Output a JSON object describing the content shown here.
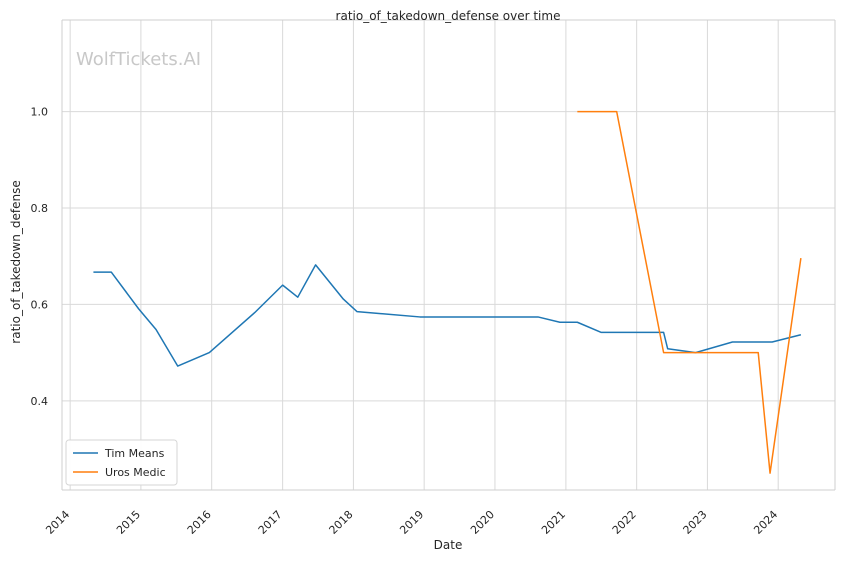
{
  "chart_data": {
    "type": "line",
    "title": "ratio_of_takedown_defense over time",
    "xlabel": "Date",
    "ylabel": "ratio_of_takedown_defense",
    "watermark": "WolfTickets.AI",
    "x_ticks": [
      "2014",
      "2015",
      "2016",
      "2017",
      "2018",
      "2019",
      "2020",
      "2021",
      "2022",
      "2023",
      "2024"
    ],
    "y_ticks": [
      "0.4",
      "0.6",
      "0.8",
      "1.0"
    ],
    "xlim": [
      "2013-11-20",
      "2024-10-20"
    ],
    "ylim": [
      0.215,
      1.19
    ],
    "grid": true,
    "legend_position": "lower-left",
    "colors": {
      "Tim Means": "#1f77b4",
      "Uros Medic": "#ff7f0e"
    },
    "series": [
      {
        "name": "Tim Means",
        "points": [
          {
            "x": "2014-05-01",
            "y": 0.667
          },
          {
            "x": "2014-08-01",
            "y": 0.667
          },
          {
            "x": "2014-12-20",
            "y": 0.591
          },
          {
            "x": "2015-03-20",
            "y": 0.548
          },
          {
            "x": "2015-07-10",
            "y": 0.472
          },
          {
            "x": "2015-12-20",
            "y": 0.5
          },
          {
            "x": "2016-08-10",
            "y": 0.583
          },
          {
            "x": "2017-01-01",
            "y": 0.64
          },
          {
            "x": "2017-03-20",
            "y": 0.615
          },
          {
            "x": "2017-06-20",
            "y": 0.682
          },
          {
            "x": "2017-11-10",
            "y": 0.611
          },
          {
            "x": "2018-01-20",
            "y": 0.585
          },
          {
            "x": "2018-12-10",
            "y": 0.574
          },
          {
            "x": "2020-08-10",
            "y": 0.574
          },
          {
            "x": "2020-12-01",
            "y": 0.563
          },
          {
            "x": "2021-03-01",
            "y": 0.563
          },
          {
            "x": "2021-07-01",
            "y": 0.542
          },
          {
            "x": "2022-05-20",
            "y": 0.542
          },
          {
            "x": "2022-06-10",
            "y": 0.508
          },
          {
            "x": "2022-11-01",
            "y": 0.5
          },
          {
            "x": "2023-05-10",
            "y": 0.522
          },
          {
            "x": "2023-12-01",
            "y": 0.522
          },
          {
            "x": "2024-04-27",
            "y": 0.537
          }
        ]
      },
      {
        "name": "Uros Medic",
        "points": [
          {
            "x": "2021-03-01",
            "y": 1.0
          },
          {
            "x": "2021-09-20",
            "y": 1.0
          },
          {
            "x": "2022-05-20",
            "y": 0.5
          },
          {
            "x": "2023-09-20",
            "y": 0.5
          },
          {
            "x": "2023-11-20",
            "y": 0.25
          },
          {
            "x": "2024-04-27",
            "y": 0.696
          }
        ]
      }
    ]
  }
}
